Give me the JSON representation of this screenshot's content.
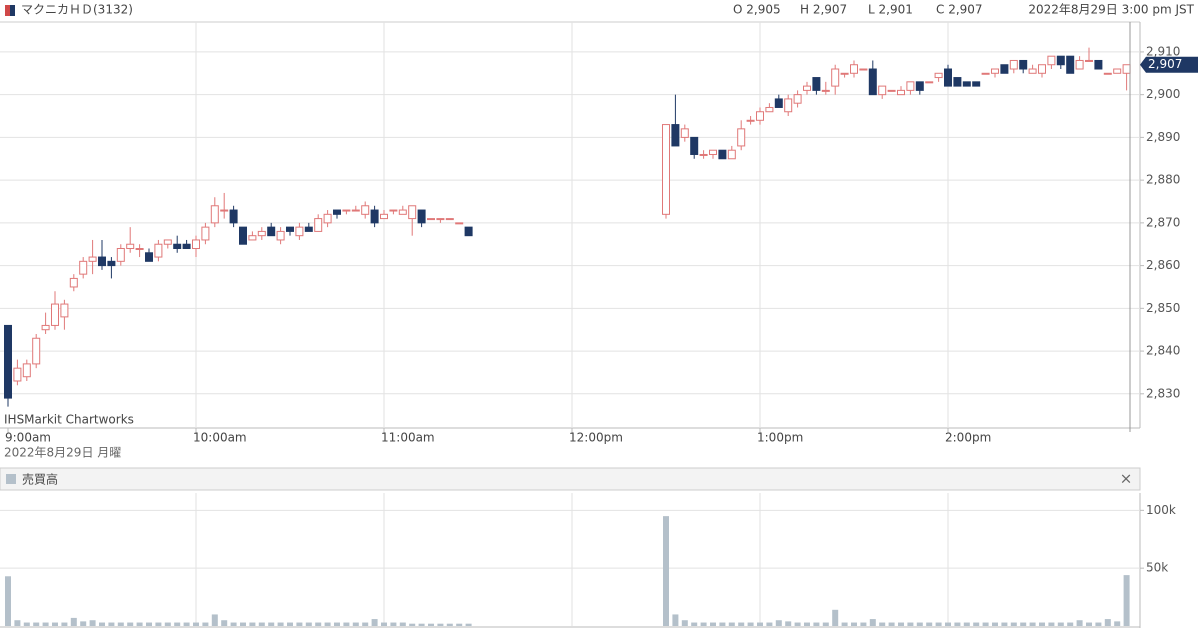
{
  "header": {
    "title": "マクニカＨＤ(3132)",
    "ohlc": [
      "O 2,905",
      "H 2,907",
      "L 2,901",
      "C 2,907"
    ],
    "timestamp": "2022年8月29日 3:00 pm JST"
  },
  "chart_data": [
    {
      "type": "candlestick",
      "categories": [
        "9:00am",
        null,
        null,
        null,
        null,
        null,
        null,
        null,
        null,
        null,
        null,
        null,
        null,
        null,
        null,
        null,
        null,
        null,
        null,
        null,
        "10:00am",
        null,
        null,
        null,
        null,
        null,
        null,
        null,
        null,
        null,
        null,
        null,
        null,
        null,
        null,
        null,
        null,
        null,
        null,
        null,
        "11:00am",
        null,
        null,
        null,
        null,
        null,
        null,
        null,
        null,
        null,
        null,
        null,
        null,
        null,
        null,
        null,
        null,
        null,
        null,
        null,
        "12:00pm",
        null,
        null,
        null,
        null,
        null,
        null,
        null,
        null,
        null,
        null,
        null,
        null,
        null,
        null,
        null,
        null,
        null,
        null,
        null,
        "1:00pm",
        null,
        null,
        null,
        null,
        null,
        null,
        null,
        null,
        null,
        null,
        null,
        null,
        null,
        null,
        null,
        null,
        null,
        null,
        null,
        "2:00pm",
        null,
        null,
        null,
        null,
        null,
        null,
        null,
        null,
        null,
        null,
        null,
        null,
        null,
        null,
        null,
        null,
        null,
        null,
        null
      ],
      "open": [
        2846,
        2833,
        2834,
        2837,
        2845,
        2846,
        2848,
        2855,
        2858,
        2861,
        2862,
        2861,
        2861,
        2864,
        2864,
        2863,
        2862,
        2865,
        2865,
        2865,
        2864,
        2866,
        2870,
        2873,
        2873,
        2869,
        2866,
        2867,
        2869,
        2866,
        2869,
        2867,
        2869,
        2868,
        2870,
        2873,
        2873,
        2873,
        2872,
        2873,
        2871,
        2873,
        2872,
        2871,
        2873,
        2871,
        2871,
        2871,
        2870,
        2869,
        null,
        null,
        null,
        null,
        null,
        null,
        null,
        null,
        null,
        null,
        null,
        null,
        null,
        null,
        null,
        null,
        null,
        null,
        null,
        null,
        2872,
        2893,
        2890,
        2890,
        2886,
        2886,
        2887,
        2885,
        2888,
        2894,
        2894,
        2896,
        2899,
        2896,
        2898,
        2901,
        2904,
        2901,
        2902,
        2905,
        2905,
        2906,
        2906,
        2900,
        2901,
        2900,
        2901,
        2903,
        2903,
        2904,
        2906,
        2904,
        2903,
        2903,
        2905,
        2905,
        2907,
        2906,
        2908,
        2905,
        2905,
        2907,
        2909,
        2909,
        2906,
        2908,
        2908,
        2905,
        2905,
        2905
      ],
      "high": [
        2846,
        2838,
        2838,
        2844,
        2849,
        2854,
        2852,
        2858,
        2862,
        2866,
        2866,
        2862,
        2865,
        2869,
        2865,
        2864,
        2866,
        2866,
        2867,
        2866,
        2867,
        2870,
        2876,
        2877,
        2874,
        2869,
        2868,
        2869,
        2870,
        2869,
        2869,
        2870,
        2870,
        2872,
        2873,
        2873,
        2873,
        2874,
        2875,
        2874,
        2873,
        2873,
        2874,
        2874,
        2873,
        2871,
        2871,
        2871,
        2870,
        2869,
        null,
        null,
        null,
        null,
        null,
        null,
        null,
        null,
        null,
        null,
        null,
        null,
        null,
        null,
        null,
        null,
        null,
        null,
        null,
        null,
        2893,
        2900,
        2893,
        2890,
        2887,
        2887,
        2887,
        2888,
        2894,
        2895,
        2897,
        2898,
        2900,
        2900,
        2901,
        2903,
        2904,
        2903,
        2907,
        2905,
        2908,
        2906,
        2908,
        2902,
        2901,
        2902,
        2903,
        2903,
        2903,
        2905,
        2907,
        2904,
        2903,
        2903,
        2905,
        2906,
        2907,
        2908,
        2908,
        2907,
        2907,
        2909,
        2909,
        2909,
        2909,
        2911,
        2908,
        2905,
        2906,
        2907
      ],
      "low": [
        2827,
        2832,
        2833,
        2836,
        2844,
        2845,
        2845,
        2854,
        2857,
        2858,
        2859,
        2857,
        2860,
        2863,
        2862,
        2861,
        2861,
        2864,
        2863,
        2864,
        2862,
        2865,
        2869,
        2871,
        2869,
        2865,
        2866,
        2866,
        2867,
        2865,
        2867,
        2866,
        2868,
        2868,
        2869,
        2871,
        2872,
        2873,
        2871,
        2869,
        2871,
        2872,
        2872,
        2867,
        2869,
        2871,
        2870,
        2871,
        2870,
        2867,
        null,
        null,
        null,
        null,
        null,
        null,
        null,
        null,
        null,
        null,
        null,
        null,
        null,
        null,
        null,
        null,
        null,
        null,
        null,
        null,
        2871,
        2888,
        2889,
        2885,
        2885,
        2885,
        2885,
        2885,
        2887,
        2893,
        2893,
        2896,
        2897,
        2895,
        2897,
        2900,
        2900,
        2900,
        2900,
        2904,
        2904,
        2906,
        2900,
        2899,
        2901,
        2900,
        2900,
        2900,
        2903,
        2903,
        2902,
        2902,
        2902,
        2902,
        2905,
        2904,
        2905,
        2905,
        2905,
        2905,
        2904,
        2906,
        2906,
        2905,
        2906,
        2908,
        2906,
        2905,
        2905,
        2901
      ],
      "close": [
        2829,
        2836,
        2837,
        2843,
        2846,
        2851,
        2851,
        2857,
        2861,
        2862,
        2860,
        2860,
        2864,
        2865,
        2864,
        2861,
        2865,
        2866,
        2864,
        2864,
        2866,
        2869,
        2874,
        2873,
        2870,
        2865,
        2867,
        2868,
        2867,
        2868,
        2868,
        2869,
        2868,
        2871,
        2872,
        2872,
        2873,
        2873,
        2874,
        2870,
        2872,
        2873,
        2873,
        2874,
        2870,
        2871,
        2871,
        2871,
        2870,
        2867,
        null,
        null,
        null,
        null,
        null,
        null,
        null,
        null,
        null,
        null,
        null,
        null,
        null,
        null,
        null,
        null,
        null,
        null,
        null,
        null,
        2893,
        2888,
        2892,
        2886,
        2886,
        2887,
        2885,
        2887,
        2892,
        2894,
        2896,
        2897,
        2897,
        2899,
        2900,
        2902,
        2901,
        2901,
        2906,
        2905,
        2907,
        2906,
        2900,
        2902,
        2901,
        2901,
        2903,
        2901,
        2903,
        2905,
        2902,
        2902,
        2902,
        2902,
        2905,
        2906,
        2905,
        2908,
        2906,
        2906,
        2907,
        2909,
        2907,
        2905,
        2908,
        2908,
        2906,
        2905,
        2906,
        2907
      ],
      "up_color": "#e07878",
      "down_color": "#1f3864",
      "ylim": [
        2822,
        2917
      ],
      "yticks": [
        {
          "value": 2830,
          "label": "2,830"
        },
        {
          "value": 2840,
          "label": "2,840"
        },
        {
          "value": 2850,
          "label": "2,850"
        },
        {
          "value": 2860,
          "label": "2,860"
        },
        {
          "value": 2870,
          "label": "2,870"
        },
        {
          "value": 2880,
          "label": "2,880"
        },
        {
          "value": 2890,
          "label": "2,890"
        },
        {
          "value": 2900,
          "label": "2,900"
        },
        {
          "value": 2910,
          "label": "2,910"
        }
      ],
      "grid": true,
      "watermark": "IHSMarkit Chartworks",
      "date_label": "2022年8月29日 月曜",
      "last_price": {
        "value": 2907,
        "label": "2,907"
      }
    },
    {
      "type": "bar",
      "title": "売買高",
      "color": "#b4c0ca",
      "values": [
        43000,
        5000,
        3000,
        3000,
        3000,
        3000,
        3000,
        7000,
        4000,
        5000,
        3000,
        3000,
        3000,
        3000,
        3000,
        3000,
        3000,
        3000,
        3000,
        3000,
        3000,
        3000,
        10000,
        5000,
        3000,
        3000,
        3000,
        3000,
        3000,
        3000,
        3000,
        3000,
        3000,
        3000,
        3000,
        3000,
        3000,
        3000,
        3000,
        6000,
        3000,
        3000,
        3000,
        2000,
        2000,
        2000,
        2000,
        2000,
        2000,
        2000,
        null,
        null,
        null,
        null,
        null,
        null,
        null,
        null,
        null,
        null,
        null,
        null,
        null,
        null,
        null,
        null,
        null,
        null,
        null,
        null,
        95000,
        10000,
        5000,
        3000,
        3000,
        3000,
        3000,
        3000,
        3000,
        3000,
        3000,
        3000,
        5000,
        4000,
        3000,
        3000,
        3000,
        3000,
        14000,
        3000,
        3000,
        3000,
        6000,
        3000,
        3000,
        3000,
        3000,
        3000,
        3000,
        3000,
        3000,
        3000,
        3000,
        3000,
        3000,
        3000,
        3000,
        3000,
        3000,
        3000,
        3000,
        3000,
        3000,
        3000,
        5000,
        3000,
        3000,
        6000,
        4000,
        44000
      ],
      "ylim": [
        0,
        115000
      ],
      "yticks": [
        {
          "value": 50000,
          "label": "50k"
        },
        {
          "value": 100000,
          "label": "100k"
        }
      ],
      "grid": true,
      "close_button": "×"
    }
  ]
}
